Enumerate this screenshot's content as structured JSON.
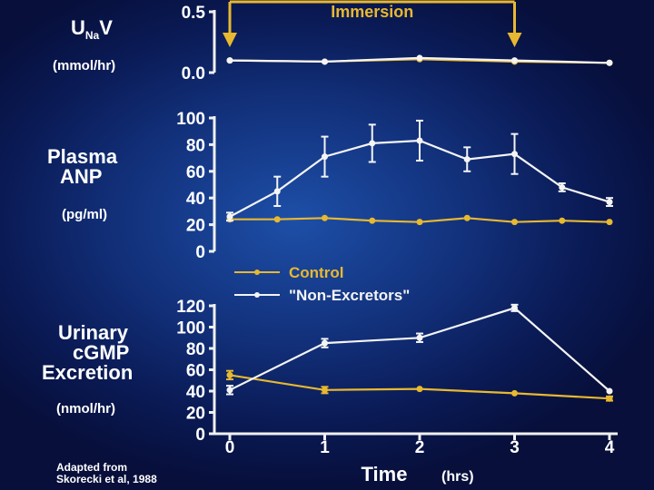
{
  "labels": {
    "p1_title": "U",
    "p1_sub": "Na",
    "p1_title2": "V",
    "p1_unit": "(mmol/hr)",
    "p2_title_line1": "Plasma",
    "p2_title_line2": "ANP",
    "p2_unit": "(pg/ml)",
    "p3_title_line1": "Urinary",
    "p3_title_line2": "cGMP",
    "p3_title_line3": "Excretion",
    "p3_unit": "(nmol/hr)",
    "immersion": "Immersion",
    "xlabel": "Time",
    "xunit": "(hrs)",
    "citation_line1": "Adapted from",
    "citation_line2": "Skorecki et al, 1988"
  },
  "colors": {
    "control": "#e8b830",
    "non_excretors": "#f4f4f4",
    "axis": "#f0f0f0",
    "immersion": "#e8b830"
  },
  "chart_data": [
    {
      "type": "line",
      "panel": "UNaV",
      "ylabel": "UNaV (mmol/hr)",
      "ylim": [
        0,
        0.5
      ],
      "yticks": [
        "0.0",
        "0.5"
      ],
      "xlim": [
        0,
        4
      ],
      "annotation": {
        "text": "Immersion",
        "x_start": 0,
        "x_end": 3
      },
      "series": [
        {
          "name": "Control",
          "x": [
            0,
            1,
            2,
            3,
            4
          ],
          "y": [
            0.1,
            0.09,
            0.11,
            0.09,
            0.08
          ]
        },
        {
          "name": "\"Non-Excretors\"",
          "x": [
            0,
            1,
            2,
            3,
            4
          ],
          "y": [
            0.1,
            0.09,
            0.12,
            0.1,
            0.08
          ]
        }
      ]
    },
    {
      "type": "line",
      "panel": "Plasma ANP",
      "ylabel": "Plasma ANP (pg/ml)",
      "ylim": [
        0,
        100
      ],
      "yticks": [
        "0",
        "20",
        "40",
        "60",
        "80",
        "100"
      ],
      "xlim": [
        0,
        4
      ],
      "legend": {
        "placement": "bottom-left",
        "entries": [
          "Control",
          "\"Non-Excretors\""
        ]
      },
      "series": [
        {
          "name": "Control",
          "x": [
            0,
            0.5,
            1,
            1.5,
            2,
            2.5,
            3,
            3.5,
            4
          ],
          "y": [
            24,
            24,
            25,
            23,
            22,
            25,
            22,
            23,
            22
          ],
          "err": [
            1,
            1,
            1,
            1,
            1,
            1,
            1,
            1,
            1
          ]
        },
        {
          "name": "\"Non-Excretors\"",
          "x": [
            0,
            0.5,
            1,
            1.5,
            2,
            2.5,
            3,
            3.5,
            4
          ],
          "y": [
            26,
            45,
            71,
            81,
            83,
            69,
            73,
            48,
            37
          ],
          "err": [
            3,
            11,
            15,
            14,
            15,
            9,
            15,
            3,
            3
          ]
        }
      ]
    },
    {
      "type": "line",
      "panel": "Urinary cGMP Excretion",
      "ylabel": "Urinary cGMP Excretion (nmol/hr)",
      "ylim": [
        0,
        120
      ],
      "yticks": [
        "0",
        "20",
        "40",
        "60",
        "80",
        "100",
        "120"
      ],
      "xlim": [
        0,
        4
      ],
      "xticks": [
        "0",
        "1",
        "2",
        "3",
        "4"
      ],
      "xlabel": "Time (hrs)",
      "series": [
        {
          "name": "Control",
          "x": [
            0,
            1,
            2,
            3,
            4
          ],
          "y": [
            55,
            41,
            42,
            38,
            33
          ],
          "err": [
            4,
            3,
            1,
            1,
            2
          ]
        },
        {
          "name": "\"Non-Excretors\"",
          "x": [
            0,
            1,
            2,
            3,
            4
          ],
          "y": [
            41,
            85,
            90,
            118,
            40
          ],
          "err": [
            4,
            4,
            4,
            3,
            1
          ]
        }
      ]
    }
  ]
}
